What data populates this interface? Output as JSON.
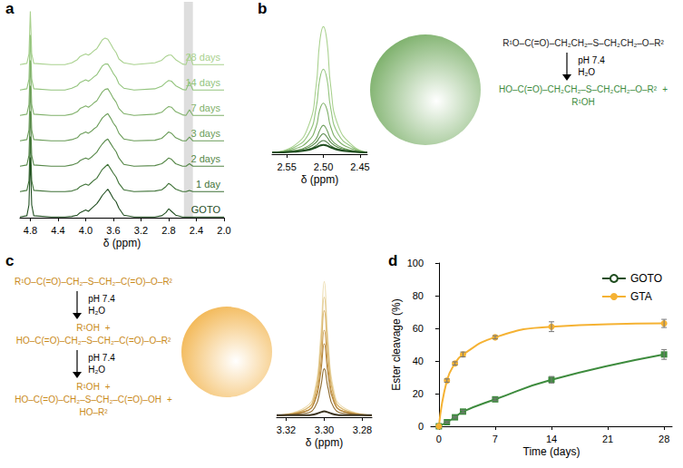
{
  "chart_data": [
    {
      "panel": "a",
      "type": "line",
      "xlabel": "δ (ppm)",
      "tick_labels": "x",
      "grid": false,
      "xlim": [
        2.0,
        4.95
      ],
      "xticks": [
        4.8,
        4.4,
        {
          "value": 4,
          "label": "4.0"
        },
        3.6,
        3.2,
        2.8,
        2.4,
        {
          "value": 2,
          "label": "2.0"
        }
      ],
      "ylim": [
        0,
        100
      ],
      "highlight": [
        2.45,
        2.58
      ],
      "x": [
        4.95,
        4.85,
        4.82,
        4.8,
        4.78,
        4.75,
        4.5,
        4.3,
        4.2,
        4.12,
        4.08,
        4.04,
        4.0,
        3.96,
        3.92,
        3.88,
        3.84,
        3.8,
        3.76,
        3.72,
        3.68,
        3.64,
        3.6,
        3.56,
        3.52,
        3.45,
        3.3,
        3.0,
        2.9,
        2.84,
        2.8,
        2.76,
        2.7,
        2.6,
        2.55,
        2.5,
        2.45,
        2.3,
        2.0
      ],
      "series": [
        {
          "name": "GOTO",
          "color": "#1f4d1f",
          "values": [
            1,
            3,
            20,
            95,
            20,
            3,
            1,
            1,
            2,
            4,
            8,
            10,
            12,
            10,
            14,
            18,
            22,
            28,
            35,
            40,
            45,
            38,
            30,
            25,
            15,
            4,
            1,
            1,
            3,
            8,
            14,
            10,
            4,
            1,
            1,
            1,
            1,
            1,
            1
          ]
        },
        {
          "name": "1 day",
          "color": "#3f7237",
          "values": [
            1,
            3,
            18,
            88,
            18,
            3,
            1,
            1,
            2,
            5,
            9,
            11,
            13,
            11,
            15,
            19,
            22,
            29,
            36,
            40,
            44,
            37,
            30,
            24,
            14,
            4,
            1,
            2,
            4,
            9,
            14,
            11,
            5,
            1,
            1,
            3,
            1,
            1,
            1
          ]
        },
        {
          "name": "2 days",
          "color": "#558747",
          "values": [
            1,
            3,
            18,
            88,
            18,
            3,
            1,
            1,
            3,
            6,
            10,
            12,
            14,
            12,
            15,
            19,
            23,
            30,
            36,
            41,
            44,
            37,
            30,
            24,
            14,
            4,
            1,
            2,
            5,
            10,
            14,
            12,
            5,
            1,
            1,
            5,
            1,
            1,
            1
          ]
        },
        {
          "name": "3 days",
          "color": "#6a9c58",
          "values": [
            1,
            3,
            18,
            88,
            18,
            3,
            1,
            1,
            3,
            6,
            11,
            13,
            15,
            13,
            16,
            20,
            23,
            30,
            37,
            41,
            44,
            37,
            29,
            23,
            13,
            4,
            1,
            2,
            5,
            11,
            15,
            13,
            6,
            1,
            1,
            7,
            1,
            1,
            1
          ]
        },
        {
          "name": "7 days",
          "color": "#7fb069",
          "values": [
            1,
            3,
            18,
            88,
            18,
            3,
            1,
            1,
            3,
            7,
            12,
            14,
            16,
            14,
            17,
            21,
            24,
            31,
            38,
            42,
            43,
            36,
            28,
            22,
            12,
            4,
            1,
            3,
            6,
            12,
            15,
            14,
            7,
            2,
            1,
            10,
            1,
            1,
            1
          ]
        },
        {
          "name": "14 days",
          "color": "#93c47d",
          "values": [
            1,
            3,
            18,
            88,
            18,
            3,
            1,
            1,
            4,
            8,
            13,
            15,
            17,
            15,
            18,
            22,
            25,
            32,
            39,
            42,
            42,
            35,
            27,
            21,
            11,
            4,
            1,
            3,
            7,
            13,
            16,
            15,
            8,
            2,
            1,
            14,
            1,
            1,
            1
          ]
        },
        {
          "name": "28 days",
          "color": "#a9d18e",
          "values": [
            1,
            3,
            18,
            85,
            18,
            3,
            1,
            1,
            4,
            9,
            14,
            16,
            18,
            16,
            19,
            23,
            26,
            33,
            40,
            43,
            41,
            34,
            26,
            20,
            10,
            4,
            1,
            4,
            8,
            14,
            16,
            16,
            9,
            2,
            1,
            18,
            1,
            1,
            1
          ]
        }
      ]
    },
    {
      "panel": "b",
      "type": "line",
      "xlabel": "δ (ppm)",
      "tick_labels": "x",
      "grid": false,
      "xlim": [
        2.44,
        2.57
      ],
      "xticks": [
        2.55,
        {
          "value": 2.5,
          "label": "2.50"
        },
        2.45
      ],
      "ylim": [
        0,
        80
      ],
      "x": [
        2.57,
        2.54,
        2.52,
        2.51,
        2.505,
        2.5,
        2.495,
        2.49,
        2.48,
        2.46,
        2.44
      ],
      "series": [
        {
          "color": "#1f4d1f",
          "values": [
            1,
            1.5,
            2.5,
            4,
            5,
            5.5,
            5,
            4,
            2.5,
            1.5,
            1
          ]
        },
        {
          "color": "#3f7237",
          "values": [
            1,
            1.5,
            3,
            5,
            7,
            8,
            7,
            5,
            3,
            1.5,
            1
          ]
        },
        {
          "color": "#558747",
          "values": [
            1,
            2,
            4,
            7,
            10,
            12,
            10,
            7,
            4,
            2,
            1
          ]
        },
        {
          "color": "#6a9c58",
          "values": [
            1,
            2,
            5,
            9,
            14,
            17,
            14,
            9,
            5,
            2,
            1
          ]
        },
        {
          "color": "#7fb069",
          "values": [
            1,
            3,
            8,
            16,
            26,
            30,
            26,
            16,
            8,
            3,
            1
          ]
        },
        {
          "color": "#93c47d",
          "values": [
            1,
            4,
            12,
            27,
            44,
            50,
            44,
            27,
            12,
            4,
            1
          ]
        },
        {
          "color": "#a9d18e",
          "values": [
            1,
            5,
            17,
            40,
            66,
            75,
            66,
            40,
            17,
            5,
            1
          ]
        }
      ]
    },
    {
      "panel": "c",
      "type": "line",
      "xlabel": "δ (ppm)",
      "tick_labels": "x",
      "grid": false,
      "xlim": [
        3.275,
        3.325
      ],
      "xticks": [
        3.32,
        {
          "value": 3.3,
          "label": "3.30"
        },
        3.28
      ],
      "ylim": [
        0,
        75
      ],
      "x": [
        3.325,
        3.31,
        3.305,
        3.302,
        3.3,
        3.298,
        3.295,
        3.29,
        3.275
      ],
      "series": [
        {
          "color": "#3b3320",
          "values": [
            1,
            1,
            1.5,
            2.5,
            3,
            2.5,
            1.5,
            1,
            1
          ]
        },
        {
          "color": "#8e6a2e",
          "values": [
            1,
            2,
            5,
            15,
            25,
            15,
            5,
            2,
            1
          ]
        },
        {
          "color": "#b3843a",
          "values": [
            1,
            3,
            8,
            22,
            38,
            22,
            8,
            3,
            1
          ]
        },
        {
          "color": "#c99b4d",
          "values": [
            1,
            3,
            9,
            26,
            45,
            26,
            9,
            3,
            1
          ]
        },
        {
          "color": "#d9b46c",
          "values": [
            1,
            4,
            11,
            32,
            55,
            32,
            11,
            4,
            1
          ]
        },
        {
          "color": "#e3c98e",
          "values": [
            1,
            4,
            12,
            36,
            62,
            36,
            12,
            4,
            1
          ]
        },
        {
          "color": "#ecdcb0",
          "values": [
            1,
            5,
            14,
            40,
            70,
            40,
            14,
            5,
            1
          ]
        }
      ]
    },
    {
      "panel": "d",
      "type": "line",
      "xlabel": "Time (days)",
      "ylabel": "Ester cleavage (%)",
      "grid": false,
      "legend": "top-right",
      "xlim": [
        -1,
        29
      ],
      "xticks": [
        0,
        7,
        14,
        21,
        28
      ],
      "ylim": [
        0,
        100
      ],
      "yticks": [
        0,
        20,
        40,
        60,
        80,
        100
      ],
      "x": [
        0,
        1,
        2,
        3,
        7,
        14,
        28
      ],
      "series": [
        {
          "name": "GOTO",
          "color": "#3d8b3d",
          "marker": "square",
          "values": [
            0,
            2.5,
            5.5,
            9,
            16.5,
            28.5,
            44
          ],
          "errors": [
            0,
            0.5,
            0.5,
            0.8,
            0.8,
            2,
            3
          ]
        },
        {
          "name": "GTA",
          "color": "#f5b233",
          "marker": "circle",
          "values": [
            0,
            28,
            38.5,
            44,
            54.5,
            61,
            63
          ],
          "errors": [
            0,
            1,
            1,
            1.5,
            1,
            3,
            2.5
          ]
        }
      ]
    }
  ],
  "schemes": [
    {
      "panel": "b",
      "circle_color": "#5e9e48",
      "steps": [
        {
          "molecules": [
            "R¹O–C(=O)–CH₂CH₂–S–CH₂CH₂–O–R²"
          ],
          "color": "#222222"
        },
        {
          "conditions": [
            "pH 7.4",
            "H₂O"
          ]
        },
        {
          "molecules": [
            "HO–C(=O)–CH₂CH₂–S–CH₂CH₂–O–R²",
            "+",
            "R¹OH"
          ],
          "color": "#3d8b3d"
        }
      ]
    },
    {
      "panel": "c",
      "circle_color": "#f0a830",
      "steps": [
        {
          "molecules": [
            "R¹O–C(=O)–CH₂–S–CH₂–C(=O)–O–R²"
          ],
          "color": "#c98a1a"
        },
        {
          "conditions": [
            "pH 7.4",
            "H₂O"
          ]
        },
        {
          "molecules": [
            "R¹OH",
            "+",
            "HO–C(=O)–CH₂–S–CH₂–C(=O)–O–R²"
          ],
          "color": "#c98a1a"
        },
        {
          "conditions": [
            "pH 7.4",
            "H₂O"
          ]
        },
        {
          "molecules": [
            "R¹OH",
            "+",
            "HO–C(=O)–CH₂–S–CH₂–C(=O)–OH",
            "+",
            "HO–R²"
          ],
          "color": "#c98a1a"
        }
      ]
    }
  ]
}
